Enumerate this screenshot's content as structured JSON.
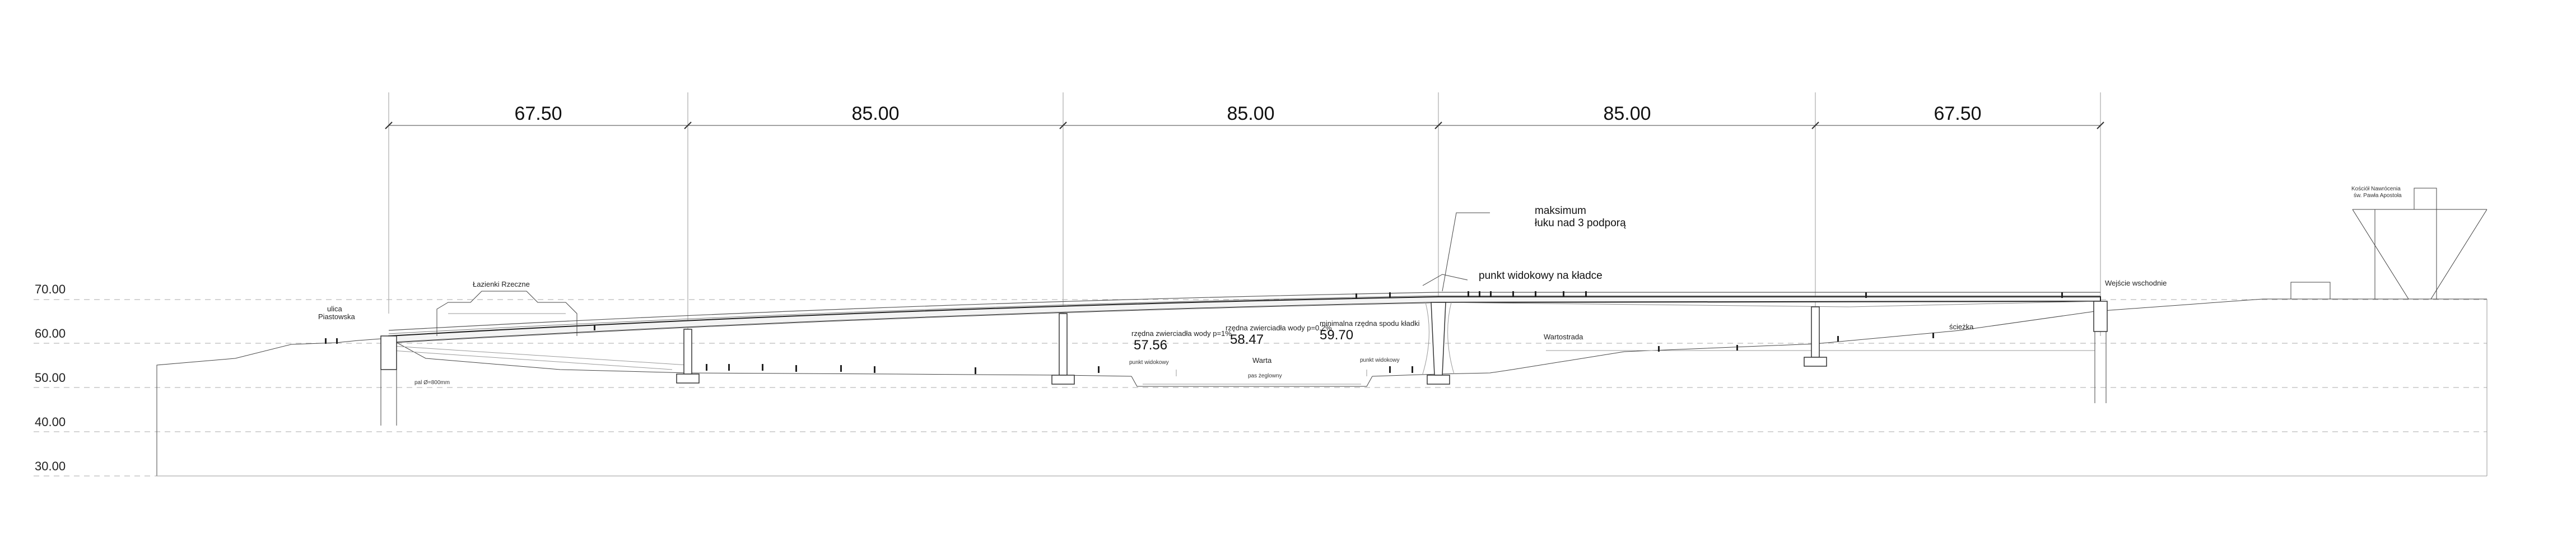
{
  "spans": [
    "67.50",
    "85.00",
    "85.00",
    "85.00",
    "67.50"
  ],
  "levels": [
    "70.00",
    "60.00",
    "50.00",
    "40.00",
    "30.00"
  ],
  "annotations": {
    "arch_max_1": "maksimum",
    "arch_max_2": "łuku nad 3 podporą",
    "viewpoint": "punkt widokowy na kładce",
    "street_1": "ulica",
    "street_2": "Piastowska",
    "baths": "Łazienki Rzeczne",
    "high_water_100": "rzędna zwierciadła wody p=1%",
    "high_water_100_val": "57.56",
    "high_water_02": "rzędna zwierciadła wody p=0.2%",
    "high_water_02_val": "58.47",
    "min_clearance": "minimalna rzędna spodu kładki",
    "min_clearance_val": "59.70",
    "river": "Warta",
    "river_sub": "pas żeglowny",
    "boulevard": "Wartostrada",
    "path": "ścieżka",
    "east_entry": "Wejście wschodnie",
    "church_1": "Kościół Nawrócenia",
    "church_2": "św. Pawła Apostoła",
    "bank_left": "punkt widokowy",
    "bank_right": "punkt widokowy",
    "foundation": "pal Ø=800mm"
  }
}
